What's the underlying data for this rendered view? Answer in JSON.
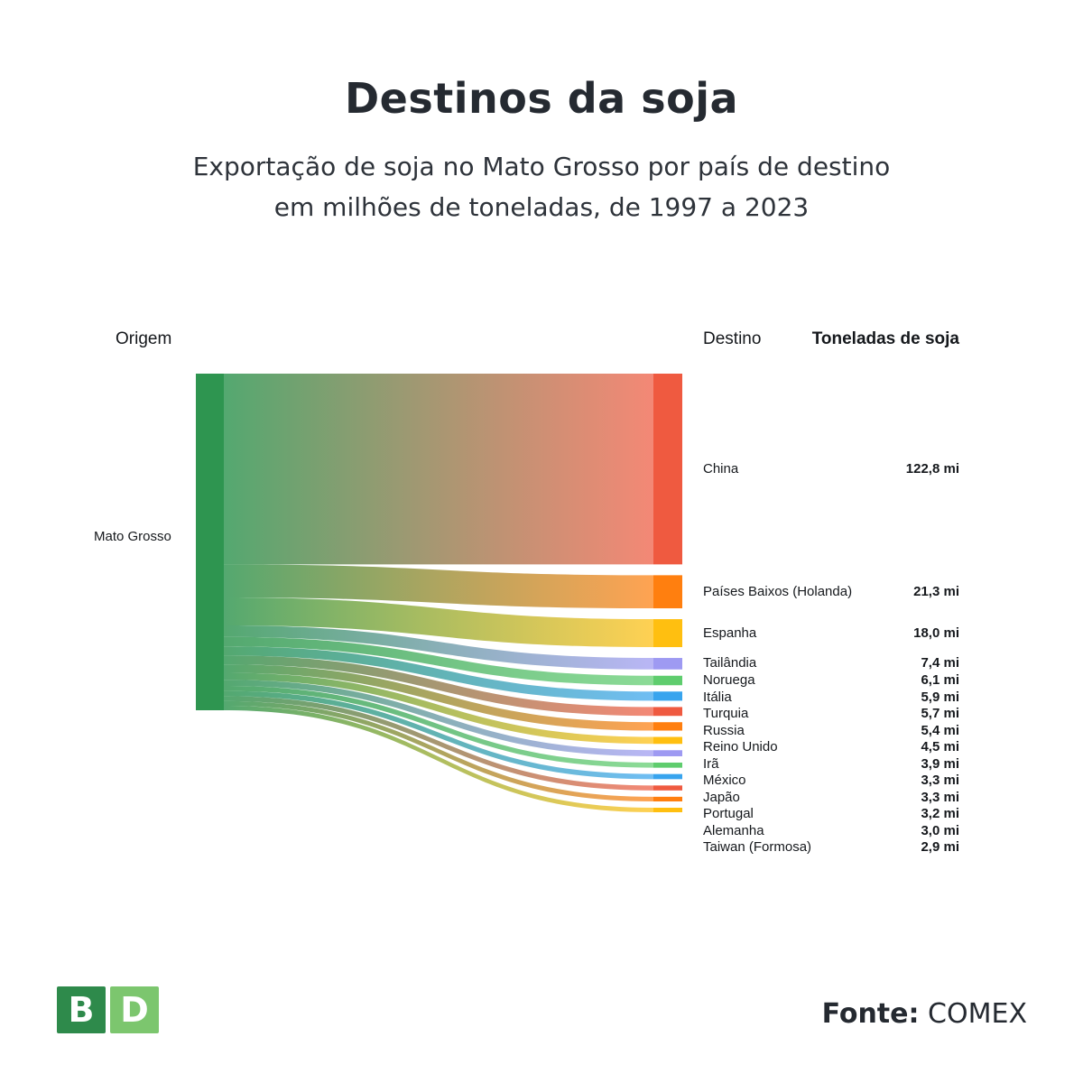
{
  "title": "Destinos da soja",
  "subtitle_line1": "Exportação de soja no Mato Grosso por país de destino",
  "subtitle_line2": "em milhões de toneladas, de 1997 a 2023",
  "headers": {
    "origin": "Origem",
    "destination": "Destino",
    "tons": "Toneladas de soja"
  },
  "footer": {
    "source_label": "Fonte:",
    "source_value": "COMEX"
  },
  "logo": {
    "left": "B",
    "right": "D",
    "left_color": "#2e8a4b",
    "right_color": "#7cc66e"
  },
  "chart_data": {
    "type": "sankey",
    "source": {
      "name": "Mato Grosso",
      "color": "#2e9550"
    },
    "unit": "milhões de toneladas",
    "flows": [
      {
        "target": "China",
        "value": 122.8,
        "label": "122,8 mi",
        "color": "#ef5a40"
      },
      {
        "target": "Países Baixos (Holanda)",
        "value": 21.3,
        "label": "21,3 mi",
        "color": "#ff7f0f"
      },
      {
        "target": "Espanha",
        "value": 18.0,
        "label": "18,0 mi",
        "color": "#ffbf10"
      },
      {
        "target": "Tailândia",
        "value": 7.4,
        "label": "7,4 mi",
        "color": "#9e9af2"
      },
      {
        "target": "Noruega",
        "value": 6.1,
        "label": "6,1 mi",
        "color": "#5fcd6e"
      },
      {
        "target": "Itália",
        "value": 5.9,
        "label": "5,9 mi",
        "color": "#38a4ee"
      },
      {
        "target": "Turquia",
        "value": 5.7,
        "label": "5,7 mi",
        "color": "#ef5a40"
      },
      {
        "target": "Russia",
        "value": 5.4,
        "label": "5,4 mi",
        "color": "#ff7f0f"
      },
      {
        "target": "Reino Unido",
        "value": 4.5,
        "label": "4,5 mi",
        "color": "#ffbf10"
      },
      {
        "target": "Irã",
        "value": 3.9,
        "label": "3,9 mi",
        "color": "#9e9af2"
      },
      {
        "target": "México",
        "value": 3.3,
        "label": "3,3 mi",
        "color": "#5fcd6e"
      },
      {
        "target": "Japão",
        "value": 3.3,
        "label": "3,3 mi",
        "color": "#38a4ee"
      },
      {
        "target": "Portugal",
        "value": 3.2,
        "label": "3,2 mi",
        "color": "#ef5a40"
      },
      {
        "target": "Alemanha",
        "value": 3.0,
        "label": "3,0 mi",
        "color": "#ff7f0f"
      },
      {
        "target": "Taiwan (Formosa)",
        "value": 2.9,
        "label": "2,9 mi",
        "color": "#ffbf10"
      }
    ]
  }
}
